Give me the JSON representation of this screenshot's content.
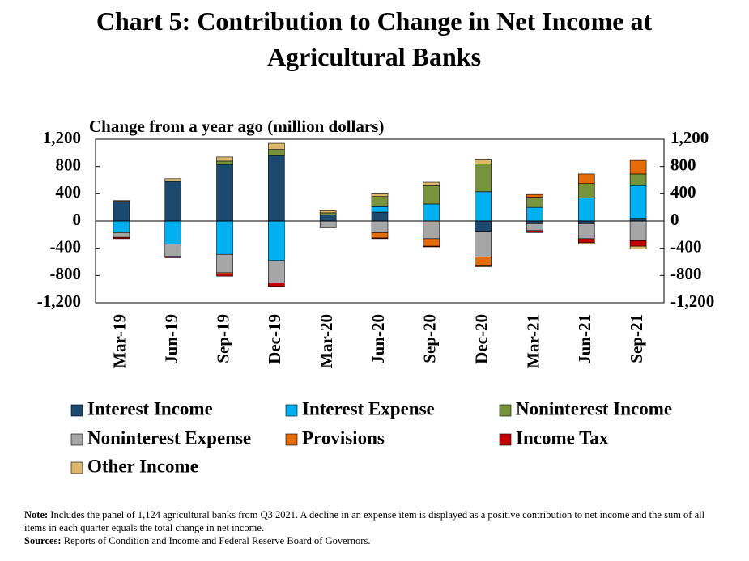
{
  "chart_data": {
    "type": "stacked-bar",
    "title": "Chart 5: Contribution to Change in Net Income at Agricultural Banks",
    "y_label": "Change from a year ago (million dollars)",
    "categories": [
      "Mar-19",
      "Jun-19",
      "Sep-19",
      "Dec-19",
      "Mar-20",
      "Jun-20",
      "Sep-20",
      "Dec-20",
      "Mar-21",
      "Jun-21",
      "Sep-21"
    ],
    "series": [
      {
        "name": "Interest Income",
        "color": "#1b4a6e",
        "values": [
          290,
          580,
          830,
          960,
          90,
          130,
          0,
          -150,
          -40,
          -40,
          40
        ]
      },
      {
        "name": "Interest Expense",
        "color": "#00b0f0",
        "values": [
          -170,
          -340,
          -490,
          -580,
          0,
          80,
          250,
          430,
          200,
          340,
          480
        ]
      },
      {
        "name": "Noninterest Income",
        "color": "#77933c",
        "values": [
          0,
          0,
          50,
          90,
          30,
          150,
          270,
          410,
          150,
          210,
          170
        ]
      },
      {
        "name": "Noninterest Expense",
        "color": "#a6a6a6",
        "values": [
          -70,
          -180,
          -270,
          -330,
          -100,
          -170,
          -260,
          -380,
          -100,
          -220,
          -290
        ]
      },
      {
        "name": "Provisions",
        "color": "#e46c0a",
        "values": [
          0,
          0,
          -20,
          0,
          0,
          -80,
          -110,
          -120,
          40,
          140,
          200
        ]
      },
      {
        "name": "Income Tax",
        "color": "#c00000",
        "values": [
          -20,
          -20,
          -30,
          -50,
          0,
          -10,
          -10,
          -20,
          -30,
          -60,
          -80
        ]
      },
      {
        "name": "Other Income",
        "color": "#dcb76c",
        "values": [
          10,
          40,
          60,
          90,
          30,
          40,
          50,
          60,
          0,
          -20,
          -40
        ]
      }
    ],
    "ylim": [
      -1200,
      1200
    ],
    "yticks": [
      {
        "value": -1200,
        "label": "-1,200"
      },
      -800,
      -400,
      0,
      400,
      800,
      {
        "value": 1200,
        "label": "1,200"
      }
    ],
    "note": {
      "label": "Note:",
      "text": "Includes the panel of 1,124 agricultural banks from Q3 2021. A decline in an expense item is displayed as a positive contribution to net income and the sum of all items in each quarter equals the total change in net income."
    },
    "sources": {
      "label": "Sources:",
      "text": "Reports of Condition and Income and Federal Reserve Board of Governors."
    }
  }
}
